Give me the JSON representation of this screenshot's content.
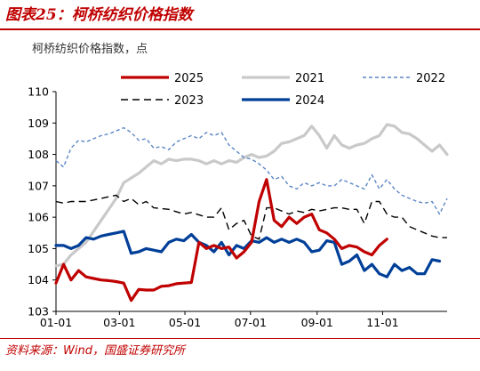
{
  "header": {
    "title": "图表25：柯桥纺织价格指数"
  },
  "footer": {
    "source": "资料来源：Wind，国盛证券研究所"
  },
  "colors": {
    "s2025": "#c00000",
    "s2021": "#c9c9c9",
    "s2022": "#5b86c5",
    "s2023": "#000000",
    "s2024": "#003f98",
    "title": "#c00000"
  },
  "chart_data": {
    "type": "line",
    "title": "",
    "ylabel": "柯桥纺织价格指数，点",
    "xlabel": "",
    "ylim": [
      103,
      110
    ],
    "yticks": [
      "103",
      "104",
      "105",
      "106",
      "107",
      "108",
      "109",
      "110"
    ],
    "xticks": [
      "01-01",
      "03-01",
      "05-01",
      "07-01",
      "09-01",
      "11-01"
    ],
    "grid": false,
    "legend_placement": "top",
    "series": [
      {
        "name": "2025",
        "style": "solid-thick",
        "color": "#c00000",
        "points": [
          [
            "01-01",
            103.9
          ],
          [
            "01-08",
            104.5
          ],
          [
            "01-15",
            104.0
          ],
          [
            "01-22",
            104.3
          ],
          [
            "01-29",
            104.1
          ],
          [
            "02-05",
            104.05
          ],
          [
            "02-12",
            104.0
          ],
          [
            "02-19",
            103.98
          ],
          [
            "02-26",
            103.95
          ],
          [
            "03-05",
            103.9
          ],
          [
            "03-12",
            103.35
          ],
          [
            "03-19",
            103.7
          ],
          [
            "03-26",
            103.68
          ],
          [
            "04-02",
            103.68
          ],
          [
            "04-09",
            103.8
          ],
          [
            "04-16",
            103.82
          ],
          [
            "04-23",
            103.88
          ],
          [
            "04-30",
            103.9
          ],
          [
            "05-07",
            103.92
          ],
          [
            "05-14",
            105.2
          ],
          [
            "05-21",
            105.0
          ],
          [
            "05-28",
            105.1
          ],
          [
            "06-04",
            105.0
          ],
          [
            "06-11",
            105.05
          ],
          [
            "06-18",
            104.7
          ],
          [
            "06-25",
            104.9
          ],
          [
            "07-02",
            105.2
          ],
          [
            "07-09",
            106.5
          ],
          [
            "07-16",
            107.2
          ],
          [
            "07-23",
            105.9
          ],
          [
            "07-30",
            105.7
          ],
          [
            "08-06",
            106.0
          ],
          [
            "08-13",
            105.8
          ],
          [
            "08-20",
            106.0
          ],
          [
            "08-27",
            106.1
          ],
          [
            "09-03",
            105.6
          ],
          [
            "09-10",
            105.5
          ],
          [
            "09-17",
            105.3
          ],
          [
            "09-24",
            105.0
          ],
          [
            "10-01",
            105.1
          ],
          [
            "10-08",
            105.05
          ],
          [
            "10-15",
            104.9
          ],
          [
            "10-22",
            104.8
          ],
          [
            "10-29",
            105.1
          ],
          [
            "11-05",
            105.3
          ]
        ]
      },
      {
        "name": "2021",
        "style": "solid-thick",
        "color": "#c9c9c9",
        "points": [
          [
            "01-01",
            104.45
          ],
          [
            "01-08",
            104.5
          ],
          [
            "01-15",
            104.8
          ],
          [
            "01-29",
            105.2
          ],
          [
            "02-12",
            105.9
          ],
          [
            "02-26",
            106.6
          ],
          [
            "03-05",
            107.1
          ],
          [
            "03-19",
            107.4
          ],
          [
            "03-26",
            107.6
          ],
          [
            "04-02",
            107.8
          ],
          [
            "04-09",
            107.7
          ],
          [
            "04-16",
            107.85
          ],
          [
            "04-23",
            107.8
          ],
          [
            "04-30",
            107.85
          ],
          [
            "05-07",
            107.85
          ],
          [
            "05-14",
            107.8
          ],
          [
            "05-21",
            107.7
          ],
          [
            "05-28",
            107.8
          ],
          [
            "06-04",
            107.7
          ],
          [
            "06-11",
            107.8
          ],
          [
            "06-18",
            107.75
          ],
          [
            "06-25",
            107.9
          ],
          [
            "07-02",
            108.0
          ],
          [
            "07-09",
            107.9
          ],
          [
            "07-16",
            107.95
          ],
          [
            "07-23",
            108.1
          ],
          [
            "07-30",
            108.35
          ],
          [
            "08-06",
            108.4
          ],
          [
            "08-13",
            108.5
          ],
          [
            "08-20",
            108.6
          ],
          [
            "08-27",
            108.9
          ],
          [
            "09-03",
            108.6
          ],
          [
            "09-10",
            108.2
          ],
          [
            "09-17",
            108.6
          ],
          [
            "09-24",
            108.3
          ],
          [
            "10-01",
            108.2
          ],
          [
            "10-08",
            108.3
          ],
          [
            "10-15",
            108.35
          ],
          [
            "10-22",
            108.5
          ],
          [
            "10-29",
            108.6
          ],
          [
            "11-05",
            108.95
          ],
          [
            "11-12",
            108.9
          ],
          [
            "11-19",
            108.7
          ],
          [
            "11-26",
            108.65
          ],
          [
            "12-03",
            108.5
          ],
          [
            "12-10",
            108.3
          ],
          [
            "12-17",
            108.1
          ],
          [
            "12-24",
            108.3
          ],
          [
            "12-31",
            108.0
          ]
        ]
      },
      {
        "name": "2022",
        "style": "dashed",
        "color": "#5b86c5",
        "points": [
          [
            "01-01",
            107.8
          ],
          [
            "01-08",
            107.6
          ],
          [
            "01-15",
            108.2
          ],
          [
            "01-22",
            108.45
          ],
          [
            "01-29",
            108.4
          ],
          [
            "02-05",
            108.5
          ],
          [
            "02-12",
            108.6
          ],
          [
            "02-19",
            108.65
          ],
          [
            "02-26",
            108.75
          ],
          [
            "03-05",
            108.85
          ],
          [
            "03-12",
            108.7
          ],
          [
            "03-19",
            108.45
          ],
          [
            "03-26",
            108.5
          ],
          [
            "04-02",
            108.2
          ],
          [
            "04-09",
            108.25
          ],
          [
            "04-16",
            108.15
          ],
          [
            "04-23",
            108.4
          ],
          [
            "04-30",
            108.5
          ],
          [
            "05-07",
            108.6
          ],
          [
            "05-14",
            108.5
          ],
          [
            "05-21",
            108.7
          ],
          [
            "05-28",
            108.6
          ],
          [
            "06-04",
            108.7
          ],
          [
            "06-11",
            108.3
          ],
          [
            "06-18",
            108.1
          ],
          [
            "06-25",
            107.9
          ],
          [
            "07-02",
            107.85
          ],
          [
            "07-09",
            107.7
          ],
          [
            "07-16",
            107.5
          ],
          [
            "07-23",
            107.2
          ],
          [
            "07-30",
            107.3
          ],
          [
            "08-06",
            107.0
          ],
          [
            "08-13",
            106.9
          ],
          [
            "08-20",
            107.1
          ],
          [
            "08-27",
            107.0
          ],
          [
            "09-03",
            107.1
          ],
          [
            "09-10",
            107.0
          ],
          [
            "09-17",
            107.0
          ],
          [
            "09-24",
            107.2
          ],
          [
            "10-01",
            107.1
          ],
          [
            "10-08",
            107.0
          ],
          [
            "10-15",
            106.9
          ],
          [
            "10-22",
            107.35
          ],
          [
            "10-29",
            106.9
          ],
          [
            "11-05",
            107.2
          ],
          [
            "11-12",
            106.9
          ],
          [
            "11-19",
            106.7
          ],
          [
            "11-26",
            106.6
          ],
          [
            "12-03",
            106.5
          ],
          [
            "12-10",
            106.45
          ],
          [
            "12-17",
            106.5
          ],
          [
            "12-24",
            106.1
          ],
          [
            "12-31",
            106.6
          ]
        ]
      },
      {
        "name": "2023",
        "style": "dashed-long",
        "color": "#000000",
        "points": [
          [
            "01-01",
            106.5
          ],
          [
            "01-08",
            106.45
          ],
          [
            "01-15",
            106.5
          ],
          [
            "01-29",
            106.5
          ],
          [
            "02-12",
            106.6
          ],
          [
            "02-26",
            106.7
          ],
          [
            "03-05",
            106.5
          ],
          [
            "03-12",
            106.6
          ],
          [
            "03-19",
            106.4
          ],
          [
            "03-26",
            106.5
          ],
          [
            "04-02",
            106.3
          ],
          [
            "04-16",
            106.25
          ],
          [
            "04-30",
            106.1
          ],
          [
            "05-07",
            106.15
          ],
          [
            "05-21",
            106.0
          ],
          [
            "05-28",
            106.0
          ],
          [
            "06-04",
            106.3
          ],
          [
            "06-11",
            105.6
          ],
          [
            "06-18",
            105.8
          ],
          [
            "06-25",
            105.9
          ],
          [
            "07-02",
            105.4
          ],
          [
            "07-09",
            105.3
          ],
          [
            "07-16",
            106.3
          ],
          [
            "07-23",
            106.3
          ],
          [
            "07-30",
            106.2
          ],
          [
            "08-06",
            106.1
          ],
          [
            "08-13",
            106.2
          ],
          [
            "08-20",
            106.15
          ],
          [
            "08-27",
            106.25
          ],
          [
            "09-03",
            106.2
          ],
          [
            "09-10",
            106.25
          ],
          [
            "09-17",
            106.3
          ],
          [
            "09-24",
            106.3
          ],
          [
            "10-01",
            106.25
          ],
          [
            "10-08",
            106.25
          ],
          [
            "10-15",
            105.8
          ],
          [
            "10-22",
            106.5
          ],
          [
            "10-29",
            106.5
          ],
          [
            "11-05",
            106.1
          ],
          [
            "11-12",
            106.0
          ],
          [
            "11-19",
            106.0
          ],
          [
            "11-26",
            105.7
          ],
          [
            "12-03",
            105.6
          ],
          [
            "12-10",
            105.5
          ],
          [
            "12-17",
            105.4
          ],
          [
            "12-24",
            105.35
          ],
          [
            "12-31",
            105.35
          ]
        ]
      },
      {
        "name": "2024",
        "style": "solid-thick",
        "color": "#003f98",
        "points": [
          [
            "01-01",
            105.1
          ],
          [
            "01-08",
            105.1
          ],
          [
            "01-15",
            105.0
          ],
          [
            "01-22",
            105.1
          ],
          [
            "01-29",
            105.35
          ],
          [
            "02-05",
            105.3
          ],
          [
            "02-12",
            105.4
          ],
          [
            "02-19",
            105.45
          ],
          [
            "02-26",
            105.5
          ],
          [
            "03-05",
            105.55
          ],
          [
            "03-12",
            104.85
          ],
          [
            "03-19",
            104.9
          ],
          [
            "03-26",
            105.0
          ],
          [
            "04-02",
            104.95
          ],
          [
            "04-09",
            104.9
          ],
          [
            "04-16",
            105.2
          ],
          [
            "04-23",
            105.3
          ],
          [
            "04-30",
            105.25
          ],
          [
            "05-07",
            105.45
          ],
          [
            "05-14",
            105.2
          ],
          [
            "05-21",
            105.1
          ],
          [
            "05-28",
            104.9
          ],
          [
            "06-04",
            105.2
          ],
          [
            "06-11",
            104.8
          ],
          [
            "06-18",
            105.1
          ],
          [
            "06-25",
            105.0
          ],
          [
            "07-02",
            105.25
          ],
          [
            "07-09",
            105.2
          ],
          [
            "07-16",
            105.35
          ],
          [
            "07-23",
            105.2
          ],
          [
            "07-30",
            105.3
          ],
          [
            "08-06",
            105.2
          ],
          [
            "08-13",
            105.3
          ],
          [
            "08-20",
            105.2
          ],
          [
            "08-27",
            104.9
          ],
          [
            "09-03",
            104.95
          ],
          [
            "09-10",
            105.25
          ],
          [
            "09-17",
            105.2
          ],
          [
            "09-24",
            104.5
          ],
          [
            "10-01",
            104.6
          ],
          [
            "10-08",
            104.8
          ],
          [
            "10-15",
            104.3
          ],
          [
            "10-22",
            104.5
          ],
          [
            "10-29",
            104.2
          ],
          [
            "11-05",
            104.1
          ],
          [
            "11-12",
            104.5
          ],
          [
            "11-19",
            104.3
          ],
          [
            "11-26",
            104.4
          ],
          [
            "12-03",
            104.2
          ],
          [
            "12-10",
            104.2
          ],
          [
            "12-17",
            104.65
          ],
          [
            "12-24",
            104.6
          ]
        ]
      }
    ]
  }
}
